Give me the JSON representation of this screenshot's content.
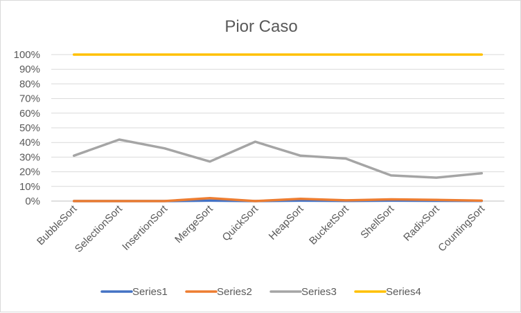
{
  "chart_data": {
    "type": "line",
    "title": "Pior Caso",
    "xlabel": "",
    "ylabel": "",
    "categories": [
      "BubbleSort",
      "SelectionSort",
      "InsertionSort",
      "MergeSort",
      "QuickSort",
      "HeapSort",
      "BucketSort",
      "ShellSort",
      "RadixSort",
      "CountingSort"
    ],
    "y_ticks": [
      "0%",
      "10%",
      "20%",
      "30%",
      "40%",
      "50%",
      "60%",
      "70%",
      "80%",
      "90%",
      "100%"
    ],
    "ylim": [
      0,
      100
    ],
    "grid": true,
    "legend_position": "bottom",
    "series": [
      {
        "name": "Series1",
        "color": "#4472C4",
        "values": [
          0,
          0,
          0,
          0.3,
          0,
          0.3,
          0.1,
          0.3,
          0.2,
          0.1
        ]
      },
      {
        "name": "Series2",
        "color": "#ED7D31",
        "values": [
          0,
          0,
          0,
          2,
          0,
          1.5,
          0.5,
          1.2,
          0.8,
          0.3
        ]
      },
      {
        "name": "Series3",
        "color": "#A5A5A5",
        "values": [
          31,
          42,
          36,
          27,
          40.5,
          31,
          29,
          17.5,
          16,
          19
        ]
      },
      {
        "name": "Series4",
        "color": "#FFC000",
        "values": [
          100,
          100,
          100,
          100,
          100,
          100,
          100,
          100,
          100,
          100
        ]
      }
    ]
  }
}
